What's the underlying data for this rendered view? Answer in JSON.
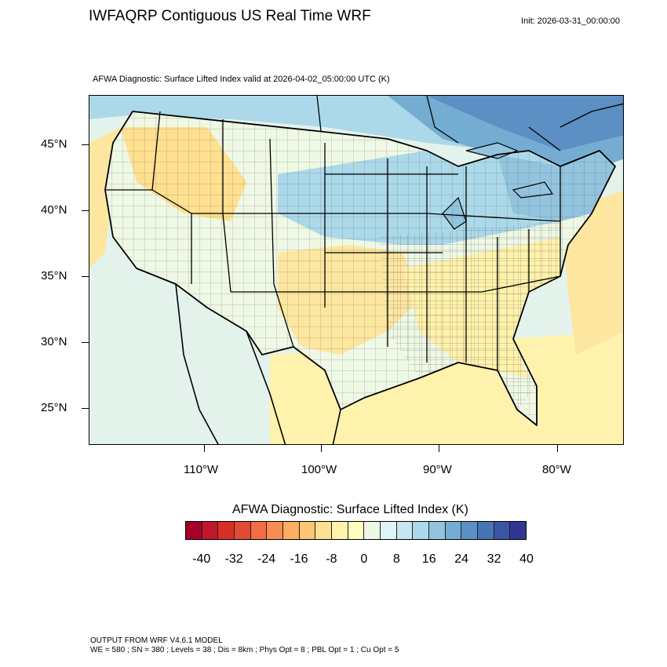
{
  "header": {
    "title": "IWFAQRP Contiguous US Real Time WRF",
    "init": "Init: 2026-03-31_00:00:00"
  },
  "plot": {
    "subtitle": "AFWA Diagnostic: Surface Lifted Index valid at 2026-04-02_05:00:00 UTC   (K)",
    "lat_labels": [
      "45°N",
      "40°N",
      "35°N",
      "30°N",
      "25°N"
    ],
    "lon_labels": [
      "110°W",
      "100°W",
      "90°W",
      "80°W"
    ]
  },
  "colorbar": {
    "title": "AFWA Diagnostic: Surface Lifted Index  (K)",
    "tick_labels": [
      "-40",
      "-32",
      "-24",
      "-16",
      "-8",
      "0",
      "8",
      "16",
      "24",
      "32",
      "40"
    ],
    "colors": [
      "#a50026",
      "#c2182b",
      "#d73027",
      "#e34a33",
      "#f46d43",
      "#f88d52",
      "#fdae61",
      "#fdc675",
      "#fee090",
      "#fff2ac",
      "#ffffbf",
      "#eef8e4",
      "#e0f3f8",
      "#c6e6f0",
      "#abd9e9",
      "#92c4de",
      "#74add1",
      "#5c8fc3",
      "#4575b4",
      "#3a55a5",
      "#313695"
    ]
  },
  "footer": {
    "line1": "OUTPUT FROM WRF V4.6.1 MODEL",
    "line2": "WE = 580 ; SN = 380 ; Levels = 38 ; Dis = 8km ; Phys Opt = 8 ; PBL Opt = 1 ; Cu Opt = 5"
  }
}
